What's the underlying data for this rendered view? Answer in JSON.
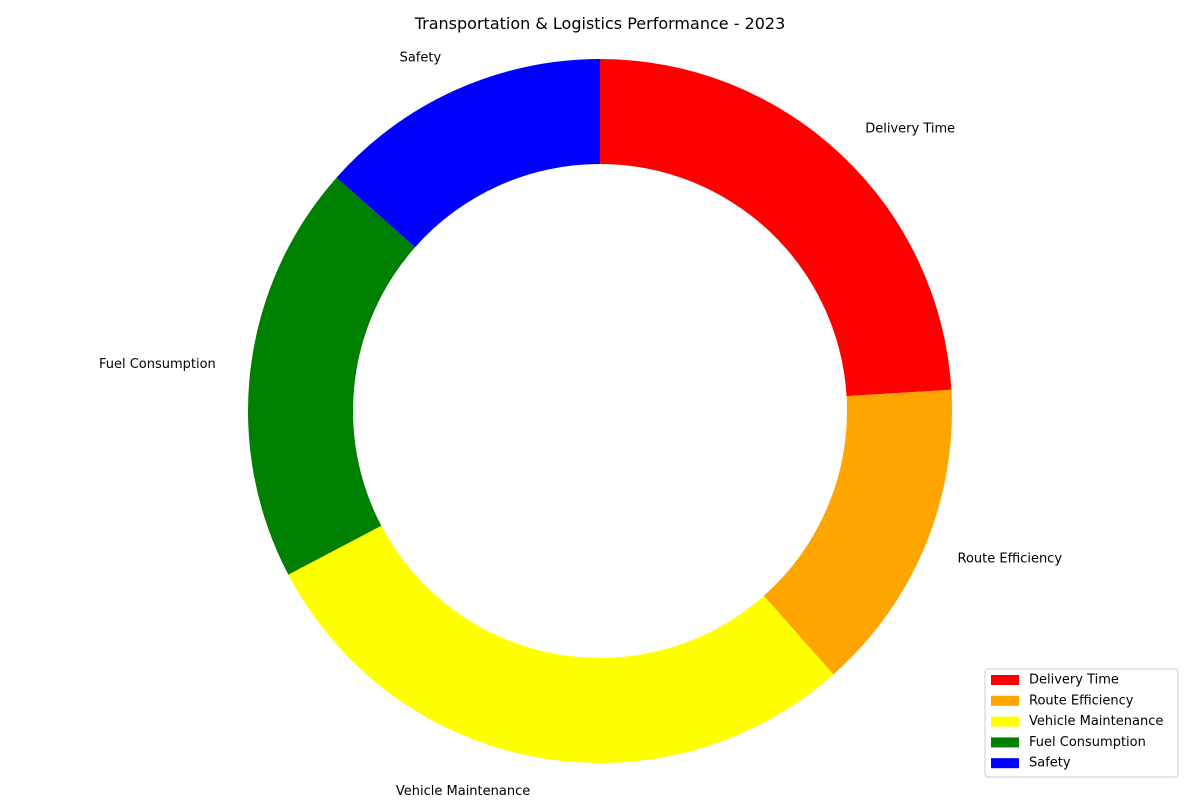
{
  "chart_data": {
    "type": "pie",
    "variant": "donut",
    "title": "Transportation & Logistics Performance - 2023",
    "categories": [
      "Delivery Time",
      "Route Efficiency",
      "Vehicle Maintenance",
      "Fuel Consumption",
      "Safety"
    ],
    "values": [
      25,
      15,
      30,
      20,
      14
    ],
    "colors": [
      "#ff0000",
      "#ffa500",
      "#ffff00",
      "#008000",
      "#0000ff"
    ],
    "start_angle_deg": 90,
    "direction": "clockwise",
    "legend_position": "bottom-right"
  }
}
